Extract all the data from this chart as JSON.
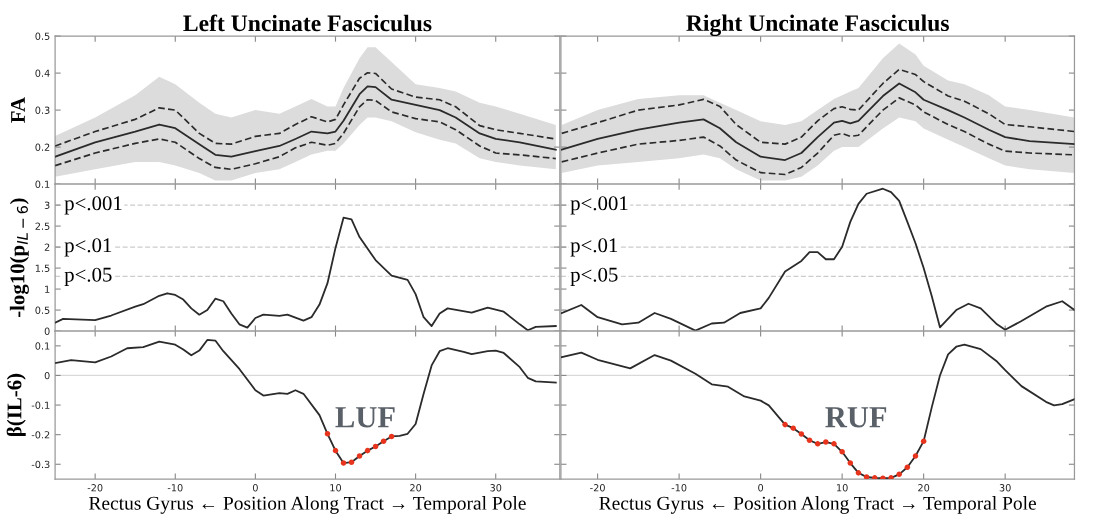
{
  "chart_data": [
    {
      "type": "line",
      "title": "Left Uncinate Fasciculus",
      "ylabel": "FA",
      "xlim": [
        -25,
        38
      ],
      "ylim": [
        0.1,
        0.5
      ],
      "xticks": [
        -20,
        -10,
        0,
        10,
        20,
        30
      ],
      "yticks": [
        0.1,
        0.2,
        0.3,
        0.4,
        0.5
      ],
      "tick_labels": "y",
      "x": [
        -25,
        -20,
        -15,
        -12,
        -10,
        -7,
        -5,
        -3,
        0,
        3,
        5,
        7,
        9,
        10,
        11,
        13,
        14,
        15,
        17,
        20,
        23,
        25,
        28,
        30,
        33,
        37.5
      ],
      "series": [
        {
          "color": "#2b2b2b",
          "line_style": "solid",
          "values": [
            0.174,
            0.213,
            0.242,
            0.261,
            0.251,
            0.208,
            0.179,
            0.174,
            0.189,
            0.203,
            0.222,
            0.242,
            0.237,
            0.242,
            0.271,
            0.343,
            0.364,
            0.362,
            0.328,
            0.314,
            0.3,
            0.28,
            0.237,
            0.222,
            0.213,
            0.193
          ],
          "lower": [
            0.12,
            0.14,
            0.16,
            0.16,
            0.15,
            0.13,
            0.11,
            0.11,
            0.13,
            0.14,
            0.16,
            0.18,
            0.19,
            0.19,
            0.21,
            0.26,
            0.28,
            0.28,
            0.27,
            0.24,
            0.22,
            0.21,
            0.17,
            0.16,
            0.15,
            0.14
          ],
          "upper": [
            0.23,
            0.28,
            0.34,
            0.39,
            0.37,
            0.32,
            0.29,
            0.28,
            0.3,
            0.29,
            0.31,
            0.33,
            0.31,
            0.31,
            0.36,
            0.44,
            0.47,
            0.47,
            0.43,
            0.37,
            0.36,
            0.35,
            0.32,
            0.31,
            0.29,
            0.26
          ]
        },
        {
          "color": "#2b2b2b",
          "line_style": "dashed",
          "values": [
            0.203,
            0.242,
            0.275,
            0.306,
            0.3,
            0.237,
            0.21,
            0.208,
            0.229,
            0.237,
            0.261,
            0.282,
            0.268,
            0.275,
            0.314,
            0.386,
            0.401,
            0.399,
            0.357,
            0.335,
            0.328,
            0.309,
            0.258,
            0.247,
            0.237,
            0.222
          ]
        },
        {
          "color": "#2b2b2b",
          "line_style": "dashed",
          "values": [
            0.15,
            0.184,
            0.21,
            0.222,
            0.213,
            0.169,
            0.145,
            0.14,
            0.155,
            0.174,
            0.198,
            0.213,
            0.205,
            0.21,
            0.237,
            0.309,
            0.328,
            0.326,
            0.295,
            0.277,
            0.268,
            0.247,
            0.203,
            0.184,
            0.179,
            0.169
          ]
        }
      ]
    },
    {
      "type": "line",
      "title": "Right Uncinate Fasciculus",
      "xlim": [
        -24.5,
        38.5
      ],
      "ylim": [
        0.1,
        0.5
      ],
      "xticks": [
        -20,
        -10,
        0,
        10,
        20,
        30
      ],
      "yticks": [
        0.1,
        0.2,
        0.3,
        0.4,
        0.5
      ],
      "tick_labels": false,
      "x": [
        -24.4,
        -20,
        -15,
        -10,
        -7,
        -5,
        -3,
        0,
        3,
        5,
        7,
        9,
        10,
        11,
        12,
        15,
        17,
        19,
        20,
        23,
        25,
        28,
        30,
        33,
        38.5
      ],
      "series": [
        {
          "color": "#2b2b2b",
          "line_style": "solid",
          "values": [
            0.193,
            0.222,
            0.247,
            0.266,
            0.275,
            0.251,
            0.213,
            0.174,
            0.165,
            0.184,
            0.227,
            0.266,
            0.271,
            0.264,
            0.271,
            0.338,
            0.372,
            0.348,
            0.328,
            0.3,
            0.28,
            0.247,
            0.227,
            0.216,
            0.208
          ],
          "lower": [
            0.13,
            0.15,
            0.16,
            0.17,
            0.18,
            0.17,
            0.14,
            0.11,
            0.11,
            0.12,
            0.15,
            0.19,
            0.2,
            0.2,
            0.2,
            0.25,
            0.28,
            0.27,
            0.25,
            0.22,
            0.2,
            0.17,
            0.15,
            0.14,
            0.13
          ],
          "upper": [
            0.26,
            0.3,
            0.33,
            0.34,
            0.34,
            0.32,
            0.3,
            0.27,
            0.26,
            0.27,
            0.3,
            0.33,
            0.34,
            0.35,
            0.36,
            0.44,
            0.48,
            0.45,
            0.42,
            0.38,
            0.37,
            0.34,
            0.31,
            0.3,
            0.28
          ]
        },
        {
          "color": "#2b2b2b",
          "line_style": "dashed",
          "values": [
            0.237,
            0.266,
            0.3,
            0.314,
            0.329,
            0.31,
            0.261,
            0.213,
            0.208,
            0.227,
            0.271,
            0.304,
            0.309,
            0.302,
            0.3,
            0.372,
            0.41,
            0.396,
            0.377,
            0.338,
            0.324,
            0.29,
            0.261,
            0.255,
            0.242
          ]
        },
        {
          "color": "#2b2b2b",
          "line_style": "dashed",
          "values": [
            0.16,
            0.184,
            0.208,
            0.218,
            0.227,
            0.203,
            0.165,
            0.131,
            0.126,
            0.145,
            0.184,
            0.232,
            0.237,
            0.229,
            0.232,
            0.3,
            0.333,
            0.314,
            0.295,
            0.261,
            0.242,
            0.208,
            0.189,
            0.184,
            0.179
          ]
        }
      ]
    },
    {
      "type": "line",
      "ylabel": "-log10(p$_{IL−6}$)",
      "xlim": [
        -25,
        38
      ],
      "ylim": [
        0,
        3.5
      ],
      "xticks": [
        -20,
        -10,
        0,
        10,
        20,
        30
      ],
      "yticks": [
        0,
        0.5,
        1,
        1.5,
        2,
        2.5,
        3
      ],
      "tick_labels": "y",
      "ref_lines": [
        {
          "axis": "y",
          "value": 3,
          "label": "p<.001",
          "color": "#cccccc",
          "line_style": "dashed"
        },
        {
          "axis": "y",
          "value": 2,
          "label": "p<.01",
          "color": "#cccccc",
          "line_style": "dashed"
        },
        {
          "axis": "y",
          "value": 1.3,
          "label": "p<.05",
          "color": "#cccccc",
          "line_style": "dashed"
        }
      ],
      "x": [
        -25,
        -24,
        -20,
        -18,
        -15,
        -14,
        -12,
        -11,
        -10,
        -9,
        -8,
        -7,
        -6,
        -5,
        -4,
        -3,
        -2,
        -1,
        0,
        1,
        3,
        4,
        6,
        7,
        8,
        9,
        10,
        11,
        12,
        13,
        15,
        17,
        19,
        20,
        21,
        22,
        23,
        24,
        27,
        29,
        31,
        33,
        34,
        35,
        37.5
      ],
      "series": [
        {
          "color": "#2b2b2b",
          "values": [
            0.2,
            0.29,
            0.26,
            0.37,
            0.58,
            0.64,
            0.84,
            0.9,
            0.86,
            0.75,
            0.54,
            0.39,
            0.5,
            0.77,
            0.71,
            0.42,
            0.16,
            0.08,
            0.31,
            0.39,
            0.36,
            0.39,
            0.25,
            0.33,
            0.63,
            1.14,
            1.98,
            2.7,
            2.66,
            2.24,
            1.69,
            1.32,
            1.22,
            0.88,
            0.33,
            0.12,
            0.42,
            0.54,
            0.44,
            0.56,
            0.46,
            0.16,
            0.02,
            0.1,
            0.12
          ]
        }
      ]
    },
    {
      "type": "line",
      "xlim": [
        -24.5,
        38.5
      ],
      "ylim": [
        0,
        3.5
      ],
      "xticks": [
        -20,
        -10,
        0,
        10,
        20,
        30
      ],
      "yticks": [
        0,
        0.5,
        1,
        1.5,
        2,
        2.5,
        3
      ],
      "tick_labels": false,
      "ref_lines": [
        {
          "axis": "y",
          "value": 3,
          "label": "p<.001",
          "color": "#cccccc",
          "line_style": "dashed"
        },
        {
          "axis": "y",
          "value": 2,
          "label": "p<.01",
          "color": "#cccccc",
          "line_style": "dashed"
        },
        {
          "axis": "y",
          "value": 1.3,
          "label": "p<.05",
          "color": "#cccccc",
          "line_style": "dashed"
        }
      ],
      "x": [
        -24.4,
        -22,
        -20,
        -17,
        -15,
        -13,
        -11,
        -8,
        -6,
        -4.5,
        -2.5,
        0,
        1,
        3,
        5,
        6,
        7,
        8,
        9,
        10,
        11,
        12,
        13,
        15,
        16,
        17,
        18,
        19,
        20,
        21,
        22,
        24,
        25.5,
        27,
        29,
        30,
        32,
        35,
        37,
        38.5
      ],
      "series": [
        {
          "color": "#2b2b2b",
          "values": [
            0.43,
            0.62,
            0.33,
            0.16,
            0.2,
            0.43,
            0.29,
            0.01,
            0.18,
            0.2,
            0.43,
            0.54,
            0.79,
            1.42,
            1.67,
            1.88,
            1.88,
            1.71,
            1.71,
            2.01,
            2.6,
            3.03,
            3.27,
            3.39,
            3.31,
            3.1,
            2.6,
            2.09,
            1.5,
            0.83,
            0.09,
            0.5,
            0.65,
            0.54,
            0.16,
            0.03,
            0.24,
            0.58,
            0.71,
            0.5
          ]
        }
      ]
    },
    {
      "type": "line",
      "ylabel": "β(IL-6)",
      "xlabel": "Rectus Gyrus ← Position Along Tract → Temporal Pole",
      "xlim": [
        -25,
        38
      ],
      "ylim": [
        -0.35,
        0.15
      ],
      "xticks": [
        -20,
        -10,
        0,
        10,
        20,
        30
      ],
      "yticks": [
        -0.3,
        -0.2,
        -0.1,
        0,
        0.1
      ],
      "ref_lines": [
        {
          "axis": "y",
          "value": 0,
          "label": null,
          "color": "#d9d9d9",
          "line_style": "solid"
        }
      ],
      "annotations": [
        "LUF"
      ],
      "x": [
        -25,
        -23,
        -20,
        -18,
        -16,
        -14,
        -12,
        -10,
        -9,
        -8,
        -7,
        -6,
        -5,
        -4,
        -2,
        0,
        1,
        3,
        4,
        5,
        6,
        8,
        9,
        10,
        11,
        12,
        13,
        14,
        15,
        16,
        17,
        18,
        19,
        20,
        21,
        22,
        23,
        24,
        26,
        27,
        29,
        30,
        31,
        33,
        34,
        35,
        37.5
      ],
      "series": [
        {
          "color": "#2b2b2b",
          "values": [
            0.042,
            0.052,
            0.044,
            0.064,
            0.092,
            0.096,
            0.114,
            0.104,
            0.088,
            0.068,
            0.084,
            0.12,
            0.118,
            0.082,
            0.022,
            -0.05,
            -0.068,
            -0.06,
            -0.062,
            -0.05,
            -0.062,
            -0.134,
            -0.197,
            -0.254,
            -0.296,
            -0.293,
            -0.272,
            -0.254,
            -0.24,
            -0.222,
            -0.206,
            -0.204,
            -0.197,
            -0.164,
            -0.062,
            0.034,
            0.082,
            0.092,
            0.08,
            0.072,
            0.082,
            0.084,
            0.076,
            0.028,
            -0.008,
            -0.02,
            -0.024
          ]
        },
        {
          "type": "scatter",
          "marker": "circle",
          "color": "#e8341c",
          "x": [
            9,
            10,
            11,
            12,
            13,
            14,
            15,
            16,
            17
          ],
          "values": [
            -0.197,
            -0.254,
            -0.296,
            -0.293,
            -0.272,
            -0.254,
            -0.24,
            -0.222,
            -0.206
          ]
        }
      ]
    },
    {
      "type": "line",
      "xlabel": "Rectus Gyrus ← Position Along Tract → Temporal Pole",
      "xlim": [
        -24.5,
        38.5
      ],
      "ylim": [
        -0.35,
        0.15
      ],
      "xticks": [
        -20,
        -10,
        0,
        10,
        20,
        30
      ],
      "yticks": [
        -0.3,
        -0.2,
        -0.1,
        0,
        0.1
      ],
      "tick_labels": "x",
      "ref_lines": [
        {
          "axis": "y",
          "value": 0,
          "label": null,
          "color": "#d9d9d9",
          "line_style": "solid"
        }
      ],
      "annotations": [
        "RUF"
      ],
      "x": [
        -24.4,
        -22,
        -20,
        -16,
        -13,
        -11,
        -8,
        -6,
        -4,
        -2,
        0,
        1,
        3,
        4,
        5,
        6,
        7,
        8,
        9,
        10,
        11,
        12,
        13,
        14,
        15,
        16,
        17,
        18,
        19,
        20,
        21,
        22,
        23,
        24,
        25,
        27,
        29,
        30,
        32,
        35,
        36,
        37,
        38.5
      ],
      "series": [
        {
          "color": "#2b2b2b",
          "values": [
            0.062,
            0.077,
            0.053,
            0.024,
            0.069,
            0.05,
            0.006,
            -0.03,
            -0.038,
            -0.071,
            -0.085,
            -0.101,
            -0.166,
            -0.178,
            -0.198,
            -0.219,
            -0.231,
            -0.225,
            -0.231,
            -0.258,
            -0.296,
            -0.329,
            -0.343,
            -0.346,
            -0.347,
            -0.346,
            -0.334,
            -0.31,
            -0.272,
            -0.222,
            -0.107,
            0.0,
            0.071,
            0.097,
            0.104,
            0.089,
            0.047,
            0.018,
            -0.036,
            -0.089,
            -0.101,
            -0.097,
            -0.08
          ]
        },
        {
          "type": "scatter",
          "marker": "circle",
          "color": "#e8341c",
          "x": [
            3,
            4,
            5,
            6,
            7,
            8,
            9,
            10,
            11,
            12,
            13,
            14,
            15,
            16,
            17,
            18,
            19,
            20
          ],
          "values": [
            -0.166,
            -0.178,
            -0.198,
            -0.219,
            -0.231,
            -0.225,
            -0.231,
            -0.258,
            -0.296,
            -0.329,
            -0.343,
            -0.346,
            -0.347,
            -0.346,
            -0.334,
            -0.31,
            -0.272,
            -0.222
          ]
        }
      ]
    }
  ]
}
